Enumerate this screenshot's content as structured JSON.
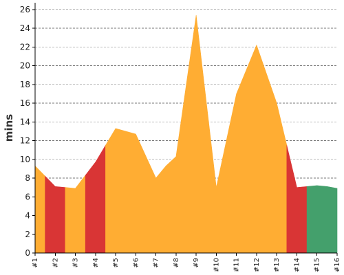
{
  "chart_data": {
    "type": "area",
    "title": "",
    "xlabel": "",
    "ylabel": "mins",
    "categories": [
      "#1",
      "#2",
      "#3",
      "#4",
      "#5",
      "#6",
      "#7",
      "#8",
      "#9",
      "#10",
      "#11",
      "#12",
      "#13",
      "#14",
      "#15",
      "#16"
    ],
    "y_ticks": [
      0,
      2,
      4,
      6,
      8,
      10,
      12,
      14,
      16,
      18,
      20,
      22,
      24,
      26
    ],
    "ylim": [
      0,
      26.5
    ],
    "grid": true,
    "legend": "none",
    "points": [
      {
        "x": 1.0,
        "y": 9.3
      },
      {
        "x": 1.5,
        "y": 8.2
      },
      {
        "x": 2.0,
        "y": 7.1
      },
      {
        "x": 2.5,
        "y": 7.0
      },
      {
        "x": 3.0,
        "y": 6.9
      },
      {
        "x": 3.5,
        "y": 8.3
      },
      {
        "x": 4.0,
        "y": 9.7
      },
      {
        "x": 4.5,
        "y": 11.5
      },
      {
        "x": 5.0,
        "y": 13.3
      },
      {
        "x": 6.0,
        "y": 12.7
      },
      {
        "x": 7.0,
        "y": 8.0
      },
      {
        "x": 7.5,
        "y": 9.3
      },
      {
        "x": 8.0,
        "y": 10.3
      },
      {
        "x": 9.0,
        "y": 25.4
      },
      {
        "x": 10.0,
        "y": 7.0
      },
      {
        "x": 11.0,
        "y": 17.0
      },
      {
        "x": 12.0,
        "y": 22.2
      },
      {
        "x": 13.0,
        "y": 16.0
      },
      {
        "x": 13.5,
        "y": 11.5
      },
      {
        "x": 14.0,
        "y": 7.0
      },
      {
        "x": 14.5,
        "y": 7.1
      },
      {
        "x": 15.0,
        "y": 7.2
      },
      {
        "x": 15.5,
        "y": 7.1
      },
      {
        "x": 16.0,
        "y": 6.9
      }
    ],
    "segments": [
      {
        "from": 1.0,
        "to": 1.5,
        "color": "#ffad33"
      },
      {
        "from": 1.5,
        "to": 2.5,
        "color": "#d93535"
      },
      {
        "from": 2.5,
        "to": 3.5,
        "color": "#ffad33"
      },
      {
        "from": 3.5,
        "to": 4.5,
        "color": "#d93535"
      },
      {
        "from": 4.5,
        "to": 13.5,
        "color": "#ffad33"
      },
      {
        "from": 13.5,
        "to": 14.5,
        "color": "#d93535"
      },
      {
        "from": 14.5,
        "to": 16.0,
        "color": "#44a06c"
      }
    ]
  }
}
